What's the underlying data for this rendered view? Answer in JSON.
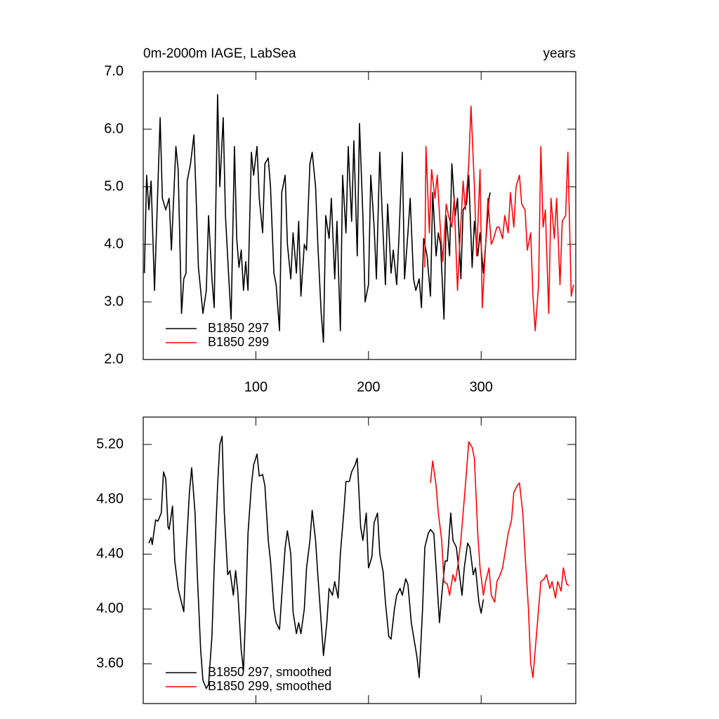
{
  "chart_data": [
    {
      "type": "line",
      "title": "0m-2000m IAGE, LabSea",
      "subtitle": "years",
      "xlim": [
        0,
        384
      ],
      "xticks": [
        100,
        200,
        300
      ],
      "ylim": [
        2,
        7
      ],
      "yticks": [
        {
          "value": 2,
          "label": "2.0"
        },
        {
          "value": 3,
          "label": "3.0"
        },
        {
          "value": 4,
          "label": "4.0"
        },
        {
          "value": 5,
          "label": "5.0"
        },
        {
          "value": 6,
          "label": "6.0"
        },
        {
          "value": 7,
          "label": "7.0"
        }
      ],
      "legend": "lower left",
      "series": [
        {
          "name": "B1850 297",
          "color": "#000000",
          "x": [
            1,
            3,
            5,
            7,
            10,
            15,
            17,
            20,
            23,
            25,
            29,
            31,
            34,
            36,
            38,
            39,
            42,
            45,
            47,
            49,
            53,
            56,
            58,
            61,
            63,
            66,
            68,
            71,
            73,
            76,
            78,
            81,
            83,
            85,
            87,
            89,
            91,
            93,
            96,
            98,
            101,
            103,
            106,
            108,
            111,
            113,
            116,
            118,
            121,
            123,
            126,
            128,
            131,
            133,
            136,
            138,
            140,
            143,
            145,
            148,
            150,
            153,
            155,
            158,
            160,
            162,
            165,
            167,
            170,
            172,
            175,
            177,
            180,
            182,
            185,
            187,
            190,
            192,
            195,
            197,
            200,
            202,
            205,
            207,
            210,
            212,
            215,
            217,
            220,
            222,
            225,
            227,
            230,
            232,
            235,
            237,
            240,
            242,
            245,
            247,
            249,
            252,
            255,
            257,
            260,
            262,
            264,
            267,
            269,
            272,
            274,
            277,
            279,
            282,
            284,
            287,
            289,
            292,
            294,
            297,
            299,
            302,
            304,
            307,
            308
          ],
          "values": [
            3.5,
            5.2,
            4.6,
            5.1,
            3.2,
            6.2,
            4.8,
            4.6,
            4.8,
            3.9,
            5.7,
            5.3,
            2.8,
            3.4,
            3.5,
            5.1,
            5.4,
            5.9,
            4.8,
            3.6,
            2.8,
            3.2,
            4.5,
            3.4,
            2.9,
            6.6,
            5.0,
            6.2,
            4.5,
            3.4,
            2.7,
            5.7,
            4.1,
            3.6,
            3.9,
            3.2,
            3.7,
            3.2,
            5.6,
            5.2,
            5.7,
            4.8,
            4.2,
            5.4,
            5.5,
            5.0,
            3.5,
            3.3,
            2.5,
            4.9,
            5.2,
            4.0,
            3.4,
            4.2,
            3.5,
            4.4,
            3.1,
            4.0,
            3.9,
            5.4,
            5.6,
            5.0,
            4.0,
            2.8,
            2.3,
            4.5,
            4.1,
            4.8,
            3.4,
            4.4,
            2.5,
            5.2,
            4.2,
            5.7,
            4.4,
            5.8,
            3.8,
            6.1,
            4.5,
            3.0,
            3.3,
            5.2,
            4.3,
            3.4,
            5.6,
            4.6,
            3.3,
            4.7,
            3.5,
            3.9,
            3.3,
            4.1,
            5.6,
            3.4,
            4.2,
            4.8,
            3.4,
            3.2,
            3.4,
            2.9,
            4.1,
            3.8,
            3.1,
            4.9,
            3.8,
            4.2,
            4.0,
            2.7,
            4.5,
            3.8,
            5.4,
            4.5,
            4.8,
            3.4,
            4.6,
            4.7,
            5.2,
            3.6,
            4.4,
            3.8,
            4.2,
            3.5,
            4.0,
            4.8,
            4.9
          ]
        },
        {
          "name": "B1850 299",
          "color": "#ff0000",
          "x": [
            250,
            251,
            254,
            256,
            259,
            261,
            264,
            266,
            269,
            271,
            274,
            276,
            279,
            281,
            284,
            286,
            289,
            291,
            294,
            296,
            299,
            301,
            304,
            306,
            309,
            311,
            314,
            316,
            319,
            321,
            324,
            326,
            329,
            331,
            334,
            336,
            339,
            341,
            344,
            346,
            348,
            351,
            353,
            355,
            357,
            360,
            362,
            365,
            367,
            370,
            372,
            375,
            377,
            380,
            382
          ],
          "values": [
            3.6,
            5.7,
            4.2,
            5.3,
            4.8,
            5.2,
            4.2,
            3.7,
            4.7,
            4.5,
            4.3,
            4.8,
            3.2,
            4.0,
            5.1,
            4.6,
            5.4,
            6.4,
            5.0,
            3.8,
            5.3,
            2.9,
            4.0,
            4.8,
            4.0,
            4.1,
            4.3,
            4.3,
            4.1,
            4.5,
            4.2,
            4.9,
            4.3,
            5.0,
            5.2,
            4.7,
            4.6,
            3.9,
            4.2,
            3.1,
            2.5,
            3.3,
            5.7,
            4.3,
            4.6,
            2.8,
            4.8,
            4.1,
            4.8,
            3.3,
            4.4,
            4.5,
            5.6,
            3.1,
            3.3
          ]
        }
      ]
    },
    {
      "type": "line",
      "xlim": [
        0,
        384
      ],
      "xticks": [
        100,
        200,
        300
      ],
      "ylim": [
        3.31,
        5.4
      ],
      "yticks": [
        {
          "value": 3.6,
          "label": "3.60"
        },
        {
          "value": 4.0,
          "label": "4.00"
        },
        {
          "value": 4.4,
          "label": "4.40"
        },
        {
          "value": 4.8,
          "label": "4.80"
        },
        {
          "value": 5.2,
          "label": "5.20"
        }
      ],
      "legend": "lower left",
      "series": [
        {
          "name": "B1850 297, smoothed",
          "color": "#000000",
          "x": [
            5,
            7,
            8,
            11,
            13,
            16,
            18,
            20,
            22,
            23,
            26,
            28,
            31,
            33,
            36,
            38,
            41,
            43,
            46,
            48,
            51,
            53,
            56,
            58,
            61,
            63,
            66,
            68,
            70,
            72,
            75,
            77,
            80,
            82,
            84,
            87,
            89,
            91,
            93,
            96,
            98,
            101,
            103,
            106,
            108,
            111,
            113,
            116,
            118,
            121,
            123,
            126,
            128,
            131,
            133,
            136,
            138,
            140,
            143,
            145,
            148,
            150,
            153,
            155,
            158,
            160,
            163,
            165,
            168,
            170,
            173,
            175,
            178,
            180,
            183,
            185,
            188,
            190,
            193,
            195,
            198,
            200,
            203,
            205,
            208,
            210,
            213,
            215,
            218,
            220,
            223,
            225,
            228,
            230,
            233,
            235,
            238,
            240,
            243,
            245,
            248,
            250,
            253,
            255,
            258,
            260,
            263,
            265,
            268,
            270,
            273,
            275,
            278,
            280,
            283,
            285,
            288,
            290,
            293,
            295,
            298,
            300,
            302
          ],
          "values": [
            4.48,
            4.52,
            4.47,
            4.65,
            4.64,
            4.7,
            5.0,
            4.95,
            4.6,
            4.58,
            4.75,
            4.35,
            4.15,
            4.08,
            3.98,
            4.4,
            4.85,
            5.03,
            4.7,
            4.25,
            3.7,
            3.48,
            3.42,
            3.45,
            3.8,
            4.3,
            4.9,
            5.2,
            5.26,
            4.7,
            4.25,
            4.28,
            4.1,
            4.28,
            4.12,
            3.7,
            3.55,
            4.0,
            4.55,
            4.9,
            5.05,
            5.13,
            4.97,
            4.98,
            4.9,
            4.5,
            4.35,
            4.0,
            3.9,
            3.85,
            4.1,
            4.45,
            4.57,
            4.4,
            3.98,
            3.82,
            3.9,
            3.82,
            4.0,
            4.3,
            4.5,
            4.72,
            4.5,
            4.25,
            3.9,
            3.66,
            3.9,
            4.15,
            4.1,
            4.2,
            4.08,
            4.4,
            4.7,
            4.93,
            4.93,
            5.0,
            5.05,
            5.1,
            4.6,
            4.5,
            4.7,
            4.3,
            4.38,
            4.63,
            4.7,
            4.4,
            4.27,
            4.05,
            3.8,
            3.78,
            4.0,
            4.1,
            4.15,
            4.1,
            4.22,
            4.18,
            3.9,
            3.8,
            3.65,
            3.5,
            4.0,
            4.45,
            4.55,
            4.58,
            4.55,
            4.3,
            3.9,
            4.1,
            4.35,
            4.35,
            4.7,
            4.5,
            4.45,
            4.3,
            4.1,
            4.3,
            4.48,
            4.45,
            4.25,
            4.3,
            4.05,
            3.97,
            4.07
          ]
        },
        {
          "name": "B1850 299, smoothed",
          "color": "#ff0000",
          "x": [
            255,
            257,
            260,
            262,
            265,
            267,
            270,
            272,
            275,
            277,
            279,
            282,
            284,
            287,
            289,
            292,
            294,
            297,
            299,
            302,
            304,
            307,
            309,
            312,
            314,
            317,
            319,
            322,
            324,
            327,
            329,
            332,
            334,
            337,
            339,
            342,
            344,
            346,
            349,
            351,
            353,
            356,
            358,
            361,
            363,
            366,
            368,
            371,
            373,
            376,
            378
          ],
          "values": [
            4.92,
            5.08,
            4.9,
            4.7,
            4.5,
            4.2,
            4.18,
            4.1,
            4.25,
            4.2,
            4.3,
            4.5,
            4.7,
            5.0,
            5.22,
            5.18,
            5.1,
            4.55,
            4.3,
            4.1,
            4.2,
            4.3,
            4.1,
            4.05,
            4.2,
            4.25,
            4.3,
            4.45,
            4.55,
            4.65,
            4.85,
            4.9,
            4.92,
            4.7,
            4.4,
            4.0,
            3.6,
            3.5,
            3.8,
            4.0,
            4.2,
            4.22,
            4.25,
            4.15,
            4.2,
            4.08,
            4.2,
            4.13,
            4.3,
            4.18,
            4.17
          ]
        }
      ]
    }
  ]
}
